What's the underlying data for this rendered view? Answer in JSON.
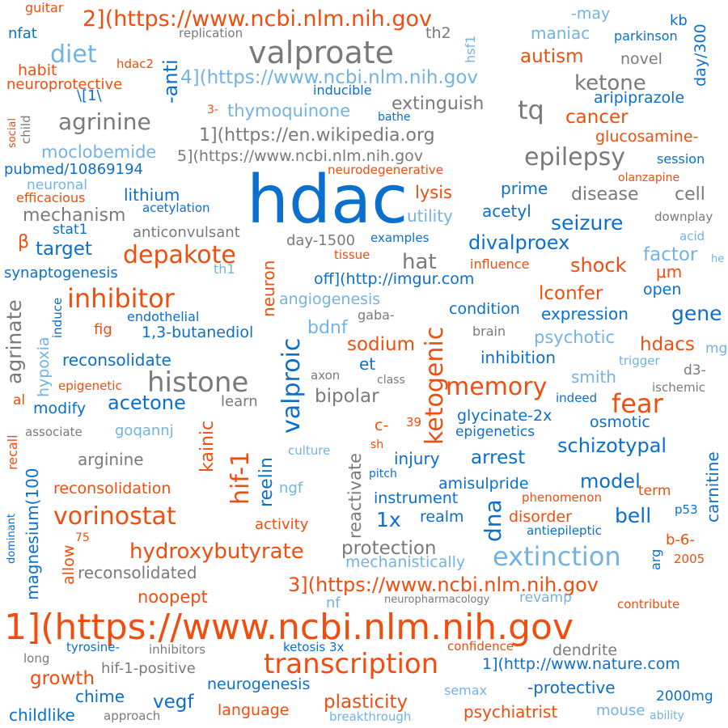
{
  "palette": {
    "blue": "#0b6fce",
    "orange": "#f04e0e",
    "gray": "#7a7a7a",
    "light_blue": "#72b3e3"
  },
  "words": [
    "hdac",
    "1](https://www.ncbi.nlm.nih.gov",
    "2](https://www.ncbi.nlm.nih.gov",
    "valproate",
    "transcription",
    "histone",
    "extinction",
    "inhibitor",
    "vorinostat",
    "epilepsy",
    "hif-1",
    "ketogenic",
    "valproic",
    "memory",
    "depakote",
    "agrinine",
    "hydroxybutyrate",
    "fear",
    "diet",
    "dna",
    "3](https://www.ncbi.nlm.nih.gov",
    "4](https://www.ncbi.nlm.nih.gov",
    "1](https://en.wikipedia.org",
    "5](https://www.ncbi.nlm.nih.gov",
    "off](http://imgur.com",
    "1](http://www.nature.com",
    "ketone",
    "tq",
    "seizure",
    "divalproex",
    "target",
    "acetone",
    "schizotypal",
    "agrinate",
    "growth",
    "plasticity",
    "magnesium(100",
    "bipolar",
    "autism",
    "cancer",
    "thymoquinone",
    "extinguish",
    "mechanism",
    "moclobemide",
    "lithium",
    "disease",
    "cell",
    "reconsolidate",
    "reconsolidation",
    "reconsolidated",
    "arginine",
    "hat",
    "sodium",
    "bell",
    "model",
    "arrest",
    "protection",
    "shock",
    "gene",
    "hdacs",
    "1x",
    "noopept",
    "neurogenesis",
    "language",
    "vegf",
    "psychiatrist",
    "chime",
    "childlike",
    "injury",
    "amisulpride",
    "instrument",
    "realm",
    "disorder",
    "condition",
    "expression",
    "inhibition",
    "psychotic",
    "smith",
    "glycinate-2x",
    "osmotic",
    "epigenetics",
    "prime",
    "acetyl",
    "utility",
    "lysis",
    "factor",
    "open",
    "μm",
    "lconfer",
    "influence",
    "tissue",
    "examples",
    "day-1500",
    "anticonvulsant",
    "gaba-",
    "brain",
    "axon",
    "class",
    "bdnf",
    "angiogenesis",
    "neuron",
    "reelin",
    "kainic",
    "reactivate",
    "carnitine",
    "hypoxia",
    "induce",
    "recall",
    "al",
    "allow",
    "activity",
    "ngf",
    "culture",
    "pitch",
    "nf",
    "revamp",
    "neuropharmacology",
    "mechanistically",
    "phenomenon",
    "term",
    "p53",
    "b-6-",
    "arg",
    "2005",
    "antiepileptic",
    "contribute",
    "dendrite",
    "confidence",
    "ketosis 3x",
    "-protective",
    "semax",
    "mouse",
    "ability",
    "breakthrough",
    "approach",
    "2000mg",
    "hif-1-positive",
    "inhibitors",
    "tyrosine-",
    "long",
    "dominant",
    "75",
    "sh",
    "c-",
    "39",
    "indeed",
    "d3-",
    "ischemic",
    "trigger",
    "mg",
    "he",
    "acid",
    "downplay",
    "session",
    "olanzapine",
    "glucosamine-",
    "aripiprazole",
    "parkinson",
    "kb",
    "day/300",
    "-may",
    "guitar",
    "nfat",
    "replication",
    "th2",
    "hsf1",
    "maniac",
    "novel",
    "hdac2",
    "habit",
    "neuroprotective",
    "\\[1\\",
    "inducible",
    "bathe",
    "3-",
    "social",
    "child",
    "pubmed/10869194",
    "neuronal",
    "efficacious",
    "stat1",
    "acetylation",
    "neurodegenerative",
    "synaptogenesis",
    "th1",
    "endothelial",
    "fig",
    "1,3-butanediol",
    "epigenetic",
    "modify",
    "associate",
    "goqannj",
    "β",
    "-anti",
    "learn",
    "et"
  ]
}
